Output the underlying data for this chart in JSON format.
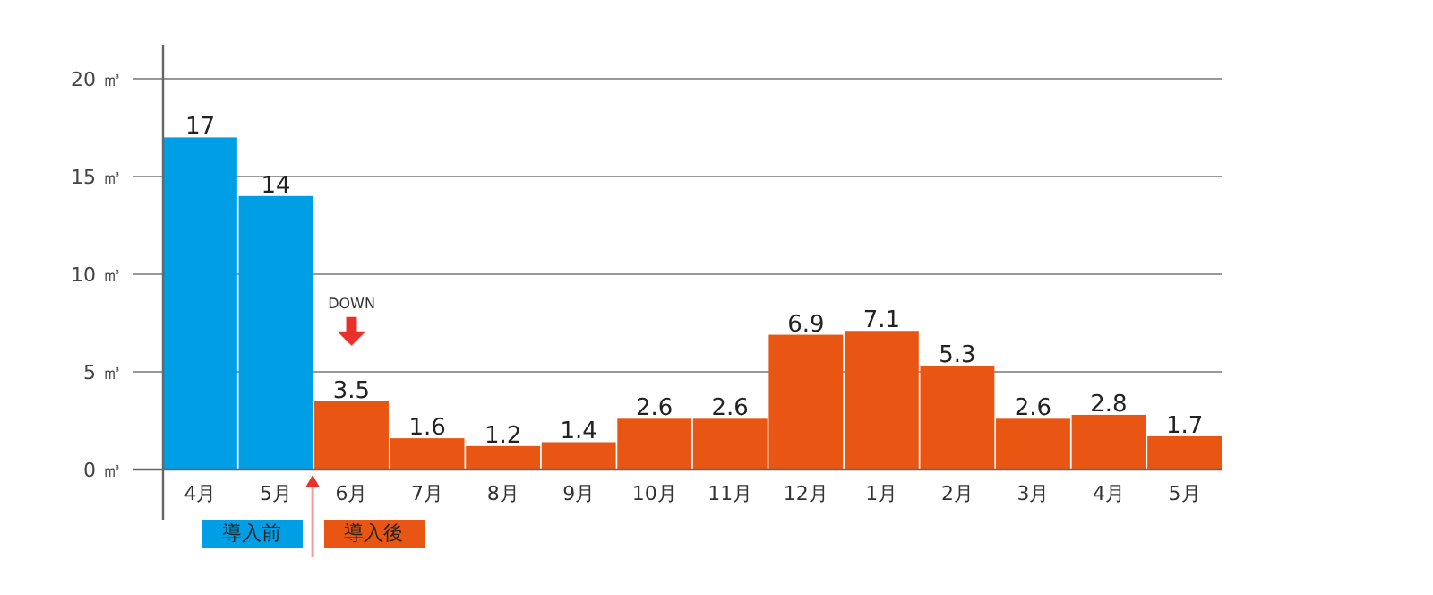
{
  "chart_data": {
    "type": "bar",
    "categories": [
      "4月",
      "5月",
      "6月",
      "7月",
      "8月",
      "9月",
      "10月",
      "11月",
      "12月",
      "1月",
      "2月",
      "3月",
      "4月",
      "5月"
    ],
    "series": [
      {
        "name": "導入前",
        "color": "#009ee5",
        "values": [
          17,
          14,
          null,
          null,
          null,
          null,
          null,
          null,
          null,
          null,
          null,
          null,
          null,
          null
        ]
      },
      {
        "name": "導入後",
        "color": "#e95513",
        "values": [
          null,
          null,
          3.5,
          1.6,
          1.2,
          1.4,
          2.6,
          2.6,
          6.9,
          7.1,
          5.3,
          2.6,
          2.8,
          1.7
        ]
      }
    ],
    "ylim": [
      0,
      20
    ],
    "yticks": [
      {
        "value": 0,
        "label": "0 ㎥"
      },
      {
        "value": 5,
        "label": "5 ㎥"
      },
      {
        "value": 10,
        "label": "10 ㎥"
      },
      {
        "value": 15,
        "label": "15 ㎥"
      },
      {
        "value": 20,
        "label": "20 ㎥"
      }
    ],
    "grid": "y",
    "data_labels": true,
    "legend": "bottom",
    "annotations": [
      "DOWN"
    ]
  }
}
